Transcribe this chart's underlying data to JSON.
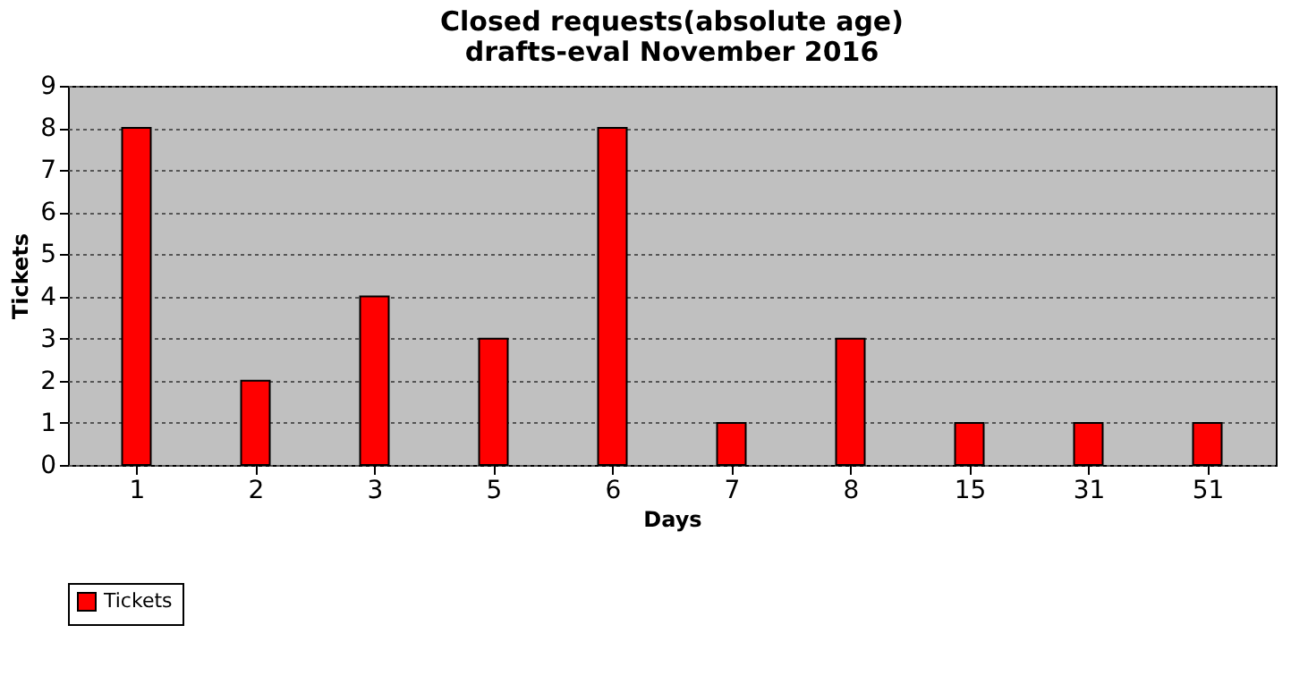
{
  "chart_data": {
    "type": "bar",
    "title": "Closed requests(absolute age)\ndrafts-eval November 2016",
    "xlabel": "Days",
    "ylabel": "Tickets",
    "categories": [
      "1",
      "2",
      "3",
      "5",
      "6",
      "7",
      "8",
      "15",
      "31",
      "51"
    ],
    "series": [
      {
        "name": "Tickets",
        "color": "#ff0000",
        "values": [
          8,
          2,
          4,
          3,
          8,
          1,
          3,
          1,
          1,
          1
        ]
      }
    ],
    "ylim": [
      0,
      9
    ],
    "yticks": [
      0,
      1,
      2,
      3,
      4,
      5,
      6,
      7,
      8,
      9
    ],
    "grid": "y",
    "legend": "bottom"
  }
}
